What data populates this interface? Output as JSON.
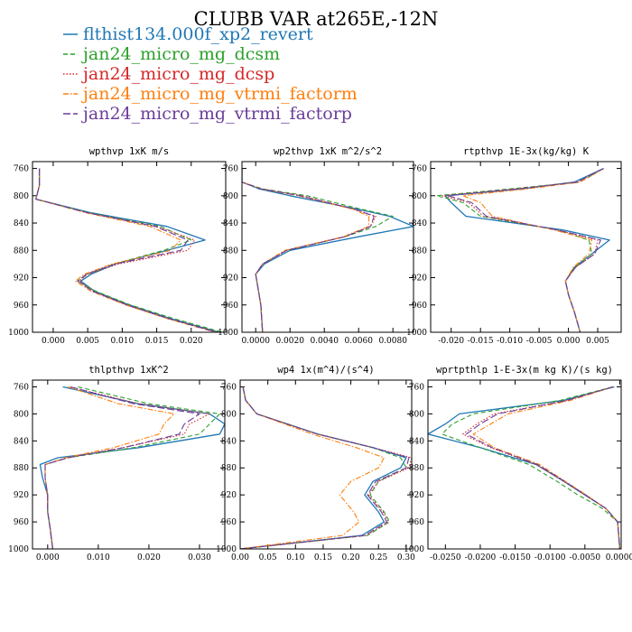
{
  "title": "CLUBB VAR at265E,-12N",
  "colors": {
    "flthist134.000f_xp2_revert": "#1f77b4",
    "jan24_micro_mg_dcsm": "#2ca02c",
    "jan24_micro_mg_dcsp": "#d62728",
    "jan24_micro_mg_vtrmi_factorm": "#ff7f0e",
    "jan24_micro_mg_vtrmi_factorp": "#6a3d9a"
  },
  "legend": [
    {
      "label": "flthist134.000f_xp2_revert",
      "color": "#1f77b4",
      "dash": "solid"
    },
    {
      "label": "jan24_micro_mg_dcsm",
      "color": "#2ca02c",
      "dash": "dash"
    },
    {
      "label": "jan24_micro_mg_dcsp",
      "color": "#d62728",
      "dash": "dot"
    },
    {
      "label": "jan24_micro_mg_vtrmi_factorm",
      "color": "#ff7f0e",
      "dash": "dashdot"
    },
    {
      "label": "jan24_micro_mg_vtrmi_factorp",
      "color": "#6a3d9a",
      "dash": "longdash"
    }
  ],
  "chart_data": [
    {
      "type": "line",
      "title": "wpthvp  1xK m/s",
      "xlim": [
        -0.003,
        0.025
      ],
      "ylim": [
        1000,
        750
      ],
      "xticks": [
        0.0,
        0.005,
        0.01,
        0.015,
        0.02
      ],
      "xtick_labels": [
        "0.000",
        "0.005",
        "0.010",
        "0.015",
        "0.020"
      ],
      "yticks": [
        760,
        800,
        840,
        880,
        920,
        960,
        1000
      ],
      "ytick_labels": [
        "760",
        "800",
        "840",
        "880",
        "920",
        "960",
        "1000"
      ],
      "y": [
        760,
        785,
        805,
        825,
        845,
        865,
        880,
        900,
        915,
        925,
        940,
        960,
        980,
        1000
      ],
      "series": [
        {
          "name": "flthist134.000f_xp2_revert",
          "values": [
            -0.002,
            -0.002,
            -0.0025,
            0.0055,
            0.0165,
            0.022,
            0.0165,
            0.009,
            0.0055,
            0.004,
            0.006,
            0.011,
            0.017,
            0.024
          ]
        },
        {
          "name": "jan24_micro_mg_dcsm",
          "values": [
            -0.002,
            -0.002,
            -0.0025,
            0.0052,
            0.0155,
            0.02,
            0.016,
            0.0088,
            0.005,
            0.0035,
            0.0062,
            0.0112,
            0.0175,
            0.0245
          ]
        },
        {
          "name": "jan24_micro_mg_dcsp",
          "values": [
            -0.002,
            -0.002,
            -0.0025,
            0.005,
            0.015,
            0.0205,
            0.0195,
            0.0095,
            0.005,
            0.0038,
            0.0058,
            0.0108,
            0.0168,
            0.0238
          ]
        },
        {
          "name": "jan24_micro_mg_vtrmi_factorm",
          "values": [
            -0.002,
            -0.002,
            -0.0025,
            0.0048,
            0.014,
            0.0185,
            0.017,
            0.0085,
            0.0045,
            0.0032,
            0.0055,
            0.0105,
            0.0165,
            0.0235
          ]
        },
        {
          "name": "jan24_micro_mg_vtrmi_factorp",
          "values": [
            -0.002,
            -0.002,
            -0.0025,
            0.005,
            0.0148,
            0.0195,
            0.0185,
            0.009,
            0.0048,
            0.0036,
            0.0057,
            0.0107,
            0.0167,
            0.0237
          ]
        }
      ]
    },
    {
      "type": "line",
      "title": "wp2thvp  1xK m^2/s^2",
      "xlim": [
        -0.0008,
        0.0092
      ],
      "ylim": [
        1000,
        750
      ],
      "xticks": [
        0.0,
        0.002,
        0.004,
        0.006,
        0.008
      ],
      "xtick_labels": [
        "0.0000",
        "0.0020",
        "0.0040",
        "0.0060",
        "0.0080"
      ],
      "yticks": [
        760,
        800,
        840,
        880,
        920,
        960,
        1000
      ],
      "ytick_labels": [
        "760",
        "800",
        "840",
        "880",
        "920",
        "960",
        "1000"
      ],
      "y": [
        760,
        780,
        790,
        800,
        820,
        830,
        845,
        860,
        880,
        900,
        915,
        930,
        960,
        1000
      ],
      "series": [
        {
          "name": "flthist134.000f_xp2_revert",
          "values": [
            -0.0008,
            -0.0008,
            0.0002,
            0.002,
            0.006,
            0.0078,
            0.0092,
            0.006,
            0.002,
            0.0005,
            0.0,
            0.0001,
            0.0003,
            0.0004
          ]
        },
        {
          "name": "jan24_micro_mg_dcsm",
          "values": [
            -0.0008,
            -0.0008,
            0.0004,
            0.003,
            0.0062,
            0.008,
            0.007,
            0.0052,
            0.0018,
            0.0004,
            0.0,
            0.0001,
            0.0003,
            0.0004
          ]
        },
        {
          "name": "jan24_micro_mg_dcsp",
          "values": [
            -0.0008,
            -0.0008,
            0.0003,
            0.0027,
            0.0058,
            0.007,
            0.0067,
            0.0052,
            0.0018,
            0.0004,
            0.0,
            0.0001,
            0.0003,
            0.0004
          ]
        },
        {
          "name": "jan24_micro_mg_vtrmi_factorm",
          "values": [
            -0.0008,
            -0.0008,
            0.0003,
            0.0025,
            0.0057,
            0.0066,
            0.0066,
            0.0051,
            0.0017,
            0.0004,
            0.0,
            0.0001,
            0.0003,
            0.0004
          ]
        },
        {
          "name": "jan24_micro_mg_vtrmi_factorp",
          "values": [
            -0.0008,
            -0.0008,
            0.0003,
            0.0026,
            0.0058,
            0.0069,
            0.0067,
            0.0052,
            0.0018,
            0.0004,
            0.0,
            0.0001,
            0.0003,
            0.0004
          ]
        }
      ]
    },
    {
      "type": "line",
      "title": "rtpthvp  1E-3x(kg/kg) K",
      "xlim": [
        -0.0235,
        0.009
      ],
      "ylim": [
        1000,
        750
      ],
      "xticks": [
        -0.02,
        -0.015,
        -0.01,
        -0.005,
        0.0,
        0.005
      ],
      "xtick_labels": [
        "-0.020",
        "-0.015",
        "-0.010",
        "-0.005",
        "0.000",
        "0.005"
      ],
      "yticks": [
        760,
        800,
        840,
        880,
        920,
        960,
        1000
      ],
      "ytick_labels": [
        "760",
        "800",
        "840",
        "880",
        "920",
        "960",
        "1000"
      ],
      "y": [
        760,
        780,
        790,
        800,
        810,
        830,
        850,
        865,
        885,
        905,
        925,
        945,
        970,
        1000
      ],
      "series": [
        {
          "name": "flthist134.000f_xp2_revert",
          "values": [
            0.006,
            0.001,
            -0.008,
            -0.021,
            -0.02,
            -0.0175,
            -0.001,
            0.007,
            0.004,
            0.001,
            -0.0005,
            0.0,
            0.001,
            0.002
          ]
        },
        {
          "name": "jan24_micro_mg_dcsm",
          "values": [
            0.006,
            0.002,
            -0.01,
            -0.0225,
            -0.018,
            -0.015,
            -0.002,
            0.0035,
            0.004,
            0.001,
            -0.0005,
            0.0,
            0.001,
            0.002
          ]
        },
        {
          "name": "jan24_micro_mg_dcsp",
          "values": [
            0.006,
            0.0015,
            -0.009,
            -0.0215,
            -0.017,
            -0.0145,
            -0.002,
            0.005,
            0.0045,
            0.0012,
            -0.0005,
            0.0,
            0.001,
            0.002
          ]
        },
        {
          "name": "jan24_micro_mg_vtrmi_factorm",
          "values": [
            0.006,
            0.002,
            -0.007,
            -0.018,
            -0.015,
            -0.013,
            -0.0025,
            0.004,
            0.0035,
            0.0008,
            -0.0005,
            0.0,
            0.001,
            0.002
          ]
        },
        {
          "name": "jan24_micro_mg_vtrmi_factorp",
          "values": [
            0.006,
            0.0015,
            -0.0085,
            -0.0205,
            -0.0165,
            -0.014,
            -0.002,
            0.0055,
            0.0045,
            0.0012,
            -0.0005,
            0.0,
            0.001,
            0.002
          ]
        }
      ]
    },
    {
      "type": "line",
      "title": "thlpthvp  1xK^2",
      "xlim": [
        -0.003,
        0.035
      ],
      "ylim": [
        1000,
        750
      ],
      "xticks": [
        0.0,
        0.01,
        0.02,
        0.03
      ],
      "xtick_labels": [
        "0.000",
        "0.010",
        "0.020",
        "0.030"
      ],
      "yticks": [
        760,
        800,
        840,
        880,
        920,
        960,
        1000
      ],
      "ytick_labels": [
        "760",
        "800",
        "840",
        "880",
        "920",
        "960",
        "1000"
      ],
      "y": [
        760,
        785,
        800,
        815,
        830,
        850,
        865,
        875,
        895,
        920,
        945,
        970,
        1000
      ],
      "series": [
        {
          "name": "flthist134.000f_xp2_revert",
          "values": [
            0.003,
            0.018,
            0.032,
            0.035,
            0.034,
            0.018,
            0.002,
            -0.0015,
            -0.001,
            0.0,
            0.0,
            0.0005,
            0.001
          ]
        },
        {
          "name": "jan24_micro_mg_dcsm",
          "values": [
            0.006,
            0.02,
            0.034,
            0.032,
            0.03,
            0.017,
            0.004,
            -0.0005,
            -0.0005,
            0.0,
            0.0,
            0.0005,
            0.001
          ]
        },
        {
          "name": "jan24_micro_mg_dcsp",
          "values": [
            0.0045,
            0.018,
            0.032,
            0.028,
            0.027,
            0.015,
            0.004,
            -0.0005,
            -0.0005,
            0.0,
            0.0,
            0.0005,
            0.001
          ]
        },
        {
          "name": "jan24_micro_mg_vtrmi_factorm",
          "values": [
            0.004,
            0.014,
            0.025,
            0.023,
            0.022,
            0.013,
            0.0035,
            -0.0005,
            -0.0005,
            0.0,
            0.0,
            0.0005,
            0.001
          ]
        },
        {
          "name": "jan24_micro_mg_vtrmi_factorp",
          "values": [
            0.0045,
            0.017,
            0.03,
            0.027,
            0.026,
            0.015,
            0.004,
            -0.0005,
            -0.0005,
            0.0,
            0.0,
            0.0005,
            0.001
          ]
        }
      ]
    },
    {
      "type": "line",
      "title": "wp4  1x(m^4)/(s^4)",
      "xlim": [
        0.0,
        0.31
      ],
      "ylim": [
        1000,
        750
      ],
      "xticks": [
        0.0,
        0.05,
        0.1,
        0.15,
        0.2,
        0.25,
        0.3
      ],
      "xtick_labels": [
        "0.00",
        "0.05",
        "0.10",
        "0.15",
        "0.20",
        "0.25",
        "0.30"
      ],
      "yticks": [
        760,
        800,
        840,
        880,
        920,
        960,
        1000
      ],
      "ytick_labels": [
        "760",
        "800",
        "840",
        "880",
        "920",
        "960",
        "1000"
      ],
      "y": [
        760,
        780,
        800,
        830,
        850,
        865,
        880,
        900,
        920,
        945,
        960,
        980,
        1000
      ],
      "series": [
        {
          "name": "flthist134.000f_xp2_revert",
          "values": [
            0.005,
            0.01,
            0.03,
            0.14,
            0.24,
            0.3,
            0.29,
            0.24,
            0.225,
            0.25,
            0.26,
            0.22,
            0.0
          ]
        },
        {
          "name": "jan24_micro_mg_dcsm",
          "values": [
            0.005,
            0.01,
            0.03,
            0.14,
            0.24,
            0.29,
            0.3,
            0.25,
            0.235,
            0.26,
            0.27,
            0.23,
            0.0
          ]
        },
        {
          "name": "jan24_micro_mg_dcsp",
          "values": [
            0.005,
            0.01,
            0.03,
            0.14,
            0.24,
            0.31,
            0.305,
            0.25,
            0.232,
            0.258,
            0.268,
            0.228,
            0.0
          ]
        },
        {
          "name": "jan24_micro_mg_vtrmi_factorm",
          "values": [
            0.005,
            0.01,
            0.03,
            0.13,
            0.21,
            0.26,
            0.25,
            0.2,
            0.18,
            0.205,
            0.215,
            0.185,
            0.0
          ]
        },
        {
          "name": "jan24_micro_mg_vtrmi_factorp",
          "values": [
            0.005,
            0.01,
            0.03,
            0.14,
            0.24,
            0.305,
            0.3,
            0.245,
            0.23,
            0.255,
            0.265,
            0.225,
            0.0
          ]
        }
      ]
    },
    {
      "type": "line",
      "title": "wprtpthlp  1-E-3x(m kg K)/(s kg)",
      "xlim": [
        -0.0275,
        0.0002
      ],
      "ylim": [
        1000,
        750
      ],
      "xticks": [
        -0.025,
        -0.02,
        -0.015,
        -0.01,
        -0.005,
        0.0
      ],
      "xtick_labels": [
        "-0.0250",
        "-0.0200",
        "-0.0150",
        "-0.0100",
        "-0.0050",
        "0.0000"
      ],
      "yticks": [
        760,
        800,
        840,
        880,
        920,
        960,
        1000
      ],
      "ytick_labels": [
        "760",
        "800",
        "840",
        "880",
        "920",
        "960",
        "1000"
      ],
      "y": [
        760,
        780,
        800,
        815,
        830,
        850,
        875,
        900,
        920,
        940,
        960,
        1000
      ],
      "series": [
        {
          "name": "flthist134.000f_xp2_revert",
          "values": [
            -0.0008,
            -0.008,
            -0.023,
            -0.025,
            -0.0275,
            -0.02,
            -0.012,
            -0.008,
            -0.005,
            -0.002,
            -0.0003,
            0.0
          ]
        },
        {
          "name": "jan24_micro_mg_dcsm",
          "values": [
            -0.001,
            -0.0085,
            -0.021,
            -0.024,
            -0.0255,
            -0.02,
            -0.013,
            -0.009,
            -0.006,
            -0.0025,
            -0.0003,
            0.0
          ]
        },
        {
          "name": "jan24_micro_mg_dcsp",
          "values": [
            -0.001,
            -0.0075,
            -0.018,
            -0.0205,
            -0.0225,
            -0.0185,
            -0.012,
            -0.008,
            -0.005,
            -0.002,
            -0.0003,
            0.0
          ]
        },
        {
          "name": "jan24_micro_mg_vtrmi_factorm",
          "values": [
            -0.001,
            -0.007,
            -0.016,
            -0.0185,
            -0.021,
            -0.018,
            -0.0115,
            -0.0078,
            -0.0048,
            -0.002,
            -0.0003,
            0.0
          ]
        },
        {
          "name": "jan24_micro_mg_vtrmi_factorp",
          "values": [
            -0.001,
            -0.0075,
            -0.0175,
            -0.02,
            -0.022,
            -0.0183,
            -0.0118,
            -0.0079,
            -0.0049,
            -0.002,
            -0.0003,
            0.0
          ]
        }
      ]
    }
  ]
}
